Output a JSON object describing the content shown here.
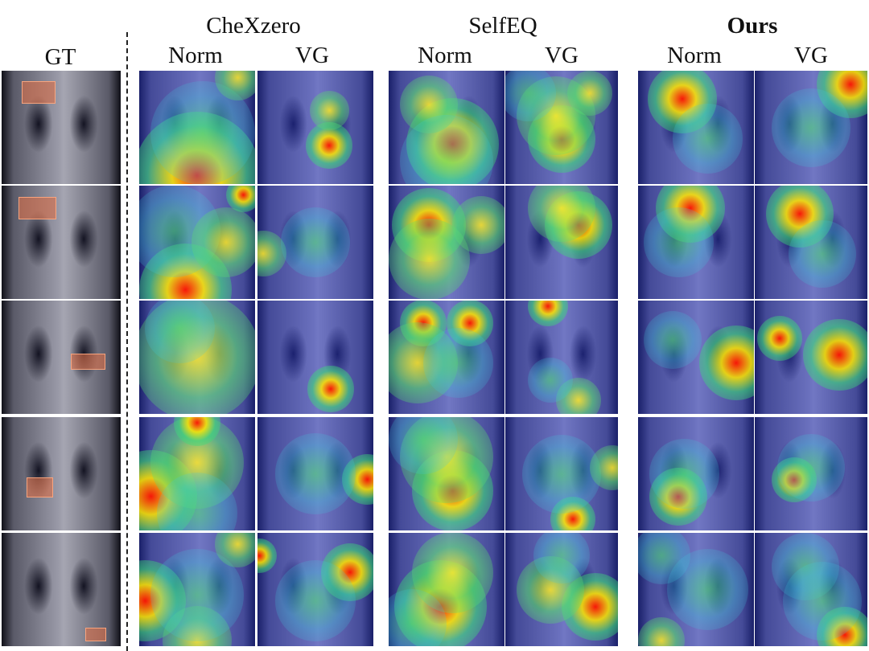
{
  "header": {
    "gt": "GT",
    "groups": [
      {
        "name": "CheXzero",
        "norm": "Norm",
        "vg": "VG"
      },
      {
        "name": "SelfEQ",
        "norm": "Norm",
        "vg": "VG"
      },
      {
        "name": "Ours",
        "norm": "Norm",
        "vg": "VG"
      }
    ]
  }
}
